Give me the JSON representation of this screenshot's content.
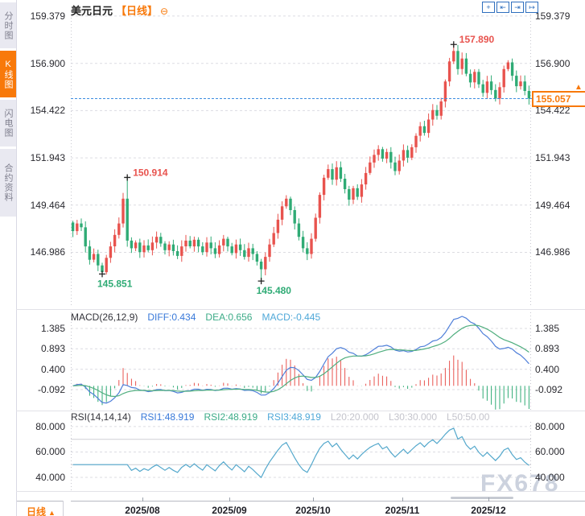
{
  "header": {
    "title": "美元日元",
    "period_tag": "【日线】",
    "collapse_glyph": "⊖"
  },
  "sidebar": {
    "tabs": [
      {
        "label": "分时图",
        "active": false
      },
      {
        "label": "K线图",
        "active": true
      },
      {
        "label": "闪电图",
        "active": false
      },
      {
        "label": "合约资料",
        "active": false
      }
    ]
  },
  "toolbar": {
    "icons": [
      {
        "name": "crosshair-icon",
        "glyph": "+"
      },
      {
        "name": "pan-left-icon",
        "glyph": "⇤"
      },
      {
        "name": "pan-right-icon",
        "glyph": "⇥"
      },
      {
        "name": "jump-to-latest-icon",
        "glyph": "↦"
      }
    ]
  },
  "colors": {
    "up": "#e8534e",
    "down": "#2fab75",
    "accent_orange": "#f8790a",
    "diff_line": "#4f7fd9",
    "dea_line": "#4fae7e",
    "rsi_line": "#54a8cc",
    "price_line_blue": "#3d8de0",
    "grid": "#dcdce2"
  },
  "current_price": {
    "label": "155.057",
    "value": 155.057,
    "marker_glyph": "▲"
  },
  "bottom_bar": {
    "period_label": "日线",
    "arrow": "▲"
  },
  "watermark": "FX678",
  "x_axis": {
    "labels": [
      "2025/08",
      "2025/09",
      "2025/10",
      "2025/11",
      "2025/12"
    ],
    "positions": [
      177,
      285,
      389,
      500,
      607
    ]
  },
  "chart_data": {
    "type": "candlestick",
    "symbol": "美元日元",
    "interval": "日线",
    "price_axis_labels": [
      "159.379",
      "156.900",
      "154.422",
      "151.943",
      "149.464",
      "146.986"
    ],
    "price_axis_values": [
      159.379,
      156.9,
      154.422,
      151.943,
      149.464,
      146.986
    ],
    "current_price": 155.057,
    "annotations": [
      {
        "text": "157.890",
        "index": 91,
        "kind": "high"
      },
      {
        "text": "150.914",
        "index": 13,
        "kind": "high"
      },
      {
        "text": "145.851",
        "index": 7,
        "kind": "low"
      },
      {
        "text": "145.480",
        "index": 45,
        "kind": "low"
      }
    ],
    "candles": {
      "first_open": 148.55,
      "closes": [
        148.1,
        148.5,
        148.3,
        147.3,
        146.6,
        146.9,
        146.3,
        145.95,
        146.7,
        147.3,
        147.9,
        148.5,
        149.8,
        147.6,
        147.2,
        147.5,
        147.0,
        147.35,
        147.1,
        147.5,
        147.8,
        147.45,
        147.1,
        147.4,
        147.05,
        146.8,
        147.3,
        147.6,
        147.3,
        147.65,
        147.3,
        147.0,
        147.5,
        147.2,
        146.9,
        147.35,
        147.7,
        147.3,
        146.95,
        147.4,
        147.1,
        146.75,
        147.2,
        146.9,
        146.5,
        146.1,
        146.75,
        147.4,
        148.0,
        148.7,
        149.4,
        149.8,
        149.2,
        148.5,
        147.8,
        147.2,
        146.9,
        147.7,
        148.8,
        150.0,
        150.9,
        151.35,
        150.8,
        151.45,
        150.85,
        150.3,
        149.75,
        150.35,
        149.9,
        150.55,
        151.15,
        151.7,
        152.1,
        152.4,
        151.9,
        152.25,
        151.7,
        151.25,
        151.8,
        152.35,
        151.95,
        152.5,
        153.1,
        153.6,
        153.25,
        153.95,
        154.45,
        154.15,
        154.9,
        155.95,
        157.0,
        157.55,
        156.6,
        157.15,
        156.35,
        155.9,
        156.45,
        155.8,
        155.35,
        155.95,
        155.5,
        155.05,
        155.65,
        156.6,
        156.95,
        156.25,
        155.7,
        155.95,
        155.45,
        155.057
      ],
      "wick_overrides": {
        "7": {
          "low": 145.851
        },
        "13": {
          "high": 150.914
        },
        "45": {
          "low": 145.48
        },
        "91": {
          "high": 157.89
        }
      }
    },
    "macd": {
      "title": "MACD(26,12,9)",
      "diff_label": "DIFF:0.434",
      "dea_label": "DEA:0.656",
      "macd_label": "MACD:-0.445",
      "axis_labels": [
        "1.385",
        "0.893",
        "0.400",
        "-0.092"
      ],
      "axis_values": [
        1.385,
        0.893,
        0.4,
        -0.092
      ]
    },
    "rsi": {
      "title": "RSI(14,14,14)",
      "rsi1_label": "RSI1:48.919",
      "rsi2_label": "RSI2:48.919",
      "rsi3_label": "RSI3:48.919",
      "l20_label": "L20:20.000",
      "l30_label": "L30:30.000",
      "l50_label": "L50:50.00",
      "axis_labels": [
        "80.000",
        "60.000",
        "40.000"
      ],
      "axis_values": [
        80,
        60,
        40
      ],
      "level_lines": [
        70,
        50
      ]
    }
  }
}
